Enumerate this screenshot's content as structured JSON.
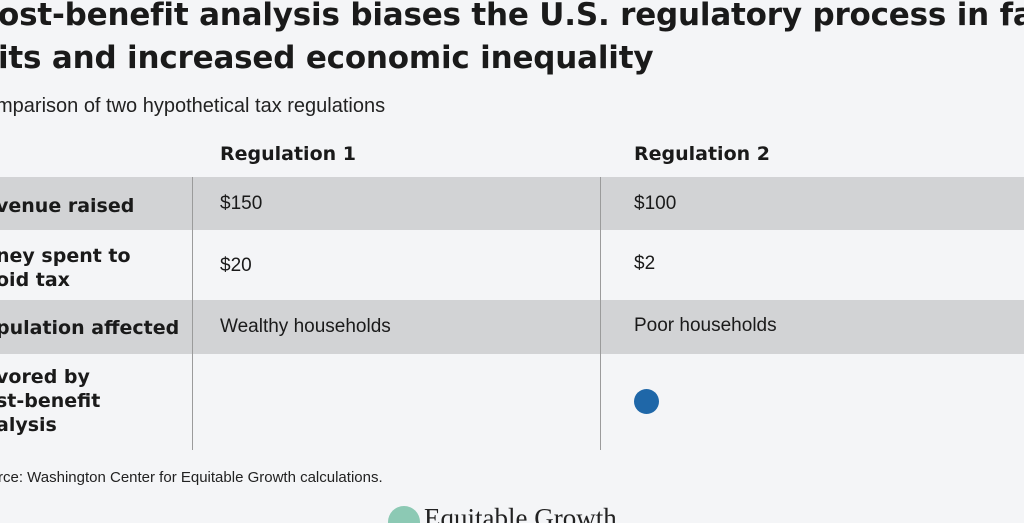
{
  "chart_data": {
    "type": "table",
    "title_lines": [
      "ost-benefit analysis biases the U.S. regulatory process in favor of tax",
      "its and increased economic inequality"
    ],
    "subtitle": "mparison of two hypothetical tax regulations",
    "columns": [
      "Regulation 1",
      "Regulation 2"
    ],
    "rows": [
      {
        "label_lines": [
          "venue raised"
        ],
        "values": [
          "$150",
          "$100"
        ]
      },
      {
        "label_lines": [
          "ney spent to",
          "oid tax"
        ],
        "values": [
          "$20",
          "$2"
        ]
      },
      {
        "label_lines": [
          "pulation affected"
        ],
        "values": [
          "Wealthy households",
          "Poor households"
        ]
      },
      {
        "label_lines": [
          "vored by",
          "st-benefit",
          "alysis"
        ],
        "values": [
          "",
          ""
        ],
        "favored": [
          false,
          true
        ]
      }
    ],
    "source": "rce: Washington Center for Equitable Growth calculations.",
    "colors": {
      "shade": "#d2d3d5",
      "dot": "#1f67a8",
      "background": "#f4f5f7"
    }
  },
  "branding": {
    "logo_text": "Equitable Growth",
    "logo_color": "#8cc9b4"
  }
}
